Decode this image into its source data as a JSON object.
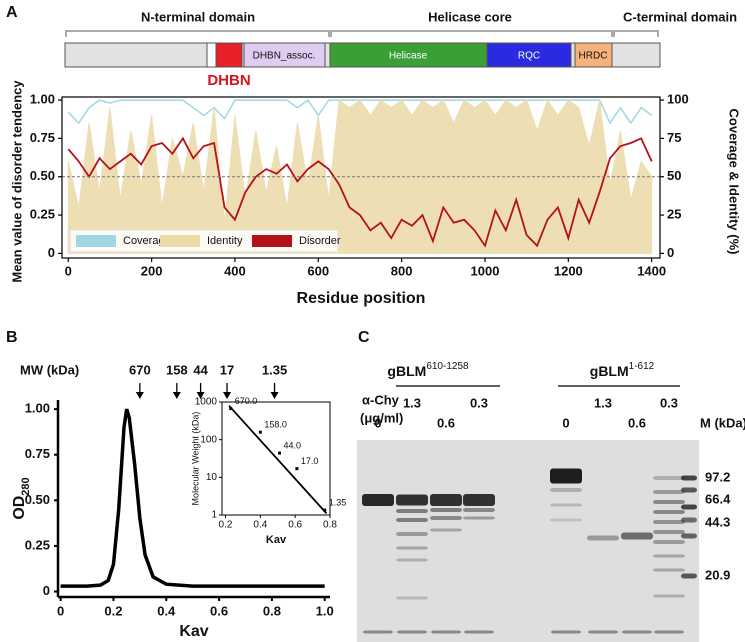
{
  "panel_labels": [
    "A",
    "B",
    "C"
  ],
  "domain_map": {
    "regions": [
      "N-terminal domain",
      "Helicase core",
      "C-terminal domain"
    ],
    "domains": [
      "DHBN_assoc.",
      "Helicase",
      "RQC",
      "HRDC"
    ],
    "highlight": "DHBN"
  },
  "chart_data": [
    {
      "type": "line",
      "xlabel": "Residue position",
      "ylabel": "Mean value of disorder tendency",
      "y2label": "Coverage & Identity (%)",
      "x": [
        0,
        25,
        50,
        75,
        100,
        125,
        150,
        175,
        200,
        225,
        250,
        275,
        300,
        325,
        350,
        375,
        400,
        425,
        450,
        475,
        500,
        525,
        550,
        575,
        600,
        625,
        650,
        675,
        700,
        725,
        750,
        775,
        800,
        825,
        850,
        875,
        900,
        925,
        950,
        975,
        1000,
        1025,
        1050,
        1075,
        1100,
        1125,
        1150,
        1175,
        1200,
        1225,
        1250,
        1275,
        1300,
        1325,
        1350,
        1375,
        1400
      ],
      "xlim": [
        -15,
        1420
      ],
      "xticks": [
        0,
        200,
        400,
        600,
        800,
        1000,
        1200,
        1400
      ],
      "ylim": [
        -0.03,
        1.02
      ],
      "yticks": [
        0,
        0.25,
        {
          "value": 0.5,
          "label": "0.50"
        },
        0.75,
        {
          "value": 1,
          "label": "1.00"
        }
      ],
      "y2lim": [
        -3,
        102
      ],
      "y2ticks": [
        0,
        25,
        50,
        75,
        100
      ],
      "hline": 0.5,
      "legend": "lower left",
      "series": [
        {
          "name": "Coverage",
          "color": "#9fd8e4",
          "axis": "y2",
          "values": [
            92,
            85,
            95,
            100,
            98,
            100,
            100,
            100,
            100,
            100,
            100,
            100,
            95,
            90,
            95,
            88,
            100,
            100,
            100,
            100,
            100,
            100,
            95,
            100,
            90,
            100,
            100,
            100,
            100,
            100,
            100,
            100,
            100,
            100,
            100,
            100,
            100,
            100,
            100,
            100,
            100,
            100,
            100,
            100,
            100,
            100,
            100,
            100,
            100,
            100,
            100,
            100,
            85,
            95,
            85,
            95,
            90
          ]
        },
        {
          "name": "Identity",
          "color": "#ecd9a8",
          "axis": "y2",
          "values": [
            60,
            30,
            85,
            40,
            95,
            35,
            80,
            45,
            90,
            30,
            75,
            50,
            85,
            40,
            95,
            20,
            90,
            35,
            80,
            40,
            70,
            30,
            85,
            45,
            90,
            35,
            100,
            95,
            100,
            90,
            100,
            95,
            100,
            90,
            100,
            95,
            100,
            85,
            100,
            95,
            100,
            90,
            100,
            95,
            100,
            80,
            100,
            90,
            100,
            95,
            70,
            100,
            45,
            80,
            35,
            60,
            50
          ]
        },
        {
          "name": "Disorder",
          "color": "#b3121b",
          "axis": "y",
          "values": [
            0.68,
            0.6,
            0.5,
            0.62,
            0.55,
            0.6,
            0.65,
            0.58,
            0.7,
            0.72,
            0.65,
            0.75,
            0.62,
            0.7,
            0.72,
            0.3,
            0.22,
            0.4,
            0.5,
            0.55,
            0.52,
            0.58,
            0.47,
            0.55,
            0.6,
            0.55,
            0.45,
            0.3,
            0.25,
            0.15,
            0.2,
            0.1,
            0.22,
            0.18,
            0.25,
            0.08,
            0.3,
            0.2,
            0.22,
            0.15,
            0.05,
            0.28,
            0.15,
            0.35,
            0.12,
            0.05,
            0.22,
            0.3,
            0.1,
            0.35,
            0.2,
            0.4,
            0.62,
            0.7,
            0.72,
            0.75,
            0.6
          ]
        }
      ]
    },
    {
      "type": "line",
      "xlabel": "Kav",
      "ylabel": "OD",
      "ylabel_sub": "280",
      "color": "#000000",
      "x": [
        0,
        0.1,
        0.15,
        0.18,
        0.2,
        0.22,
        0.24,
        0.25,
        0.26,
        0.28,
        0.3,
        0.32,
        0.35,
        0.4,
        0.5,
        0.7,
        1.0
      ],
      "values": [
        0.03,
        0.03,
        0.035,
        0.06,
        0.15,
        0.45,
        0.9,
        1.0,
        0.95,
        0.7,
        0.4,
        0.2,
        0.08,
        0.04,
        0.03,
        0.03,
        0.03
      ],
      "xlim": [
        -0.01,
        1.02
      ],
      "xticks": [
        0,
        0.2,
        0.4,
        0.6,
        0.8,
        {
          "value": 1,
          "label": "1.0"
        }
      ],
      "ylim": [
        -0.03,
        1.05
      ],
      "yticks": [
        0,
        0.25,
        {
          "value": 0.5,
          "label": "0.50"
        },
        0.75,
        {
          "value": 1,
          "label": "1.00"
        }
      ],
      "markers": {
        "title": "MW (kDa)",
        "x": [
          0.3,
          0.44,
          0.53,
          0.63,
          0.81
        ],
        "labels": [
          670,
          158,
          44,
          17,
          1.35
        ]
      }
    },
    {
      "type": "scatter",
      "xlabel": "Kav",
      "ylabel": "Molecular Weight (kDa)",
      "x": [
        0.23,
        0.4,
        0.51,
        0.61,
        0.77
      ],
      "values": [
        670,
        158,
        44,
        17,
        1.35
      ],
      "value_labels": [
        "670.0",
        "158.0",
        "44.0",
        "17.0",
        "1.35"
      ],
      "log_y": true,
      "xlim": [
        0.18,
        0.8
      ],
      "xticks": [
        0.2,
        0.4,
        0.6,
        0.8
      ],
      "ylim": [
        1,
        1000
      ],
      "yticks": [
        1,
        10,
        100,
        1000
      ],
      "fit": {
        "x": [
          0.22,
          0.78
        ],
        "values": [
          800,
          1.1
        ]
      }
    }
  ],
  "gel": {
    "constructs": [
      {
        "name": "gBLM",
        "sup": "610-1258"
      },
      {
        "name": "gBLM",
        "sup": "1-612"
      }
    ],
    "treatment": "α-Chy",
    "unit": "(μg/ml)",
    "concentrations": [
      0,
      1.3,
      0.6,
      0.3,
      0,
      1.3,
      0.6,
      0.3
    ],
    "marker_title": "M (kDa)",
    "markers": [
      97.2,
      66.4,
      44.3,
      20.9
    ]
  }
}
